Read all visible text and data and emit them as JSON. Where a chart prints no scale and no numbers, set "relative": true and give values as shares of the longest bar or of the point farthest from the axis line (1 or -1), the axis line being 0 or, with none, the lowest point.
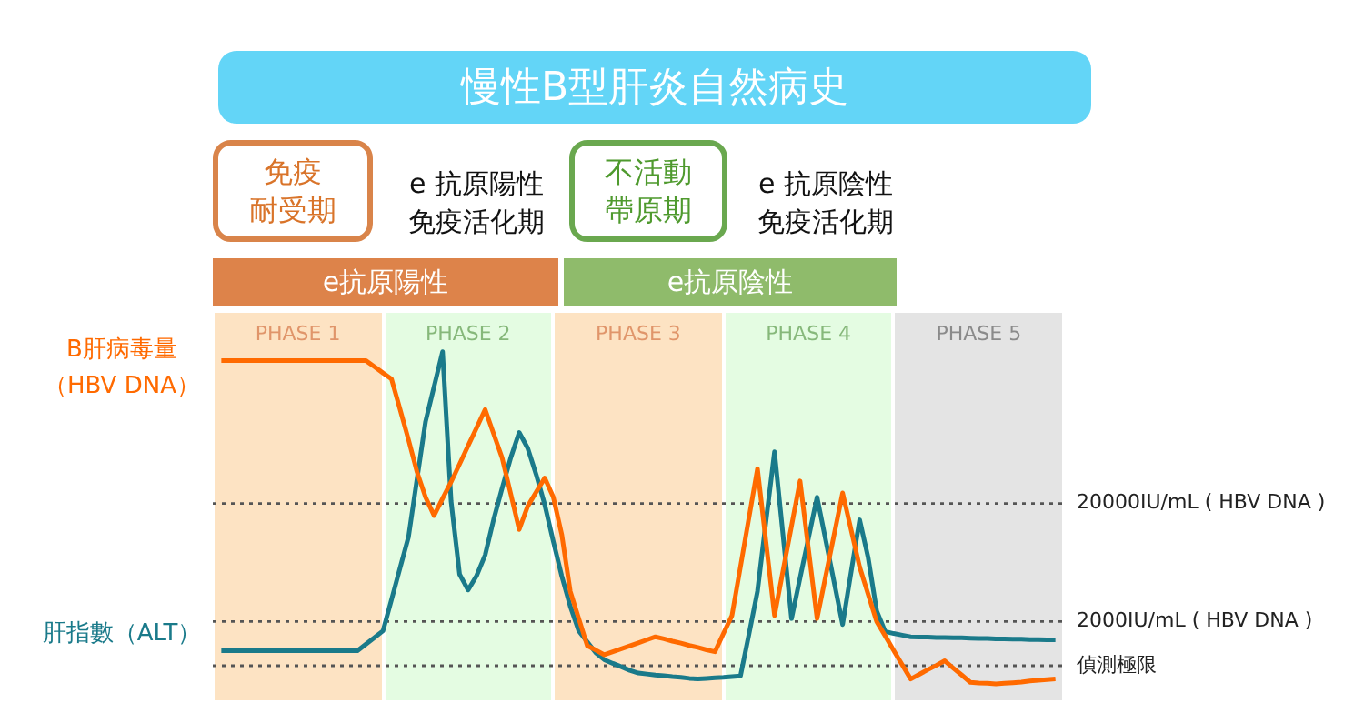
{
  "chart_data": {
    "type": "line",
    "title": "慢性B型肝炎自然病史",
    "relative": true,
    "tick_labels": false,
    "legend": false,
    "marker": "none",
    "line_style": "solid",
    "categories": [
      null,
      null,
      null,
      null,
      null,
      null,
      null,
      null,
      null,
      null,
      null,
      null,
      null,
      null,
      null,
      null,
      null,
      null,
      null,
      null,
      null,
      null,
      null,
      null,
      null,
      null,
      null,
      null,
      null,
      null,
      null,
      null,
      null,
      null,
      null,
      null,
      null,
      null,
      null,
      null,
      null,
      null,
      null,
      null,
      null,
      null,
      null,
      null,
      null,
      null,
      null,
      null,
      null,
      null,
      null,
      null,
      null,
      null,
      null,
      null,
      null,
      null,
      null,
      null,
      null,
      null,
      null,
      null,
      null,
      null,
      null,
      null,
      null,
      null,
      null,
      null,
      null,
      null,
      null,
      null,
      null,
      null,
      null,
      null,
      null,
      null,
      null,
      null,
      null,
      null,
      null,
      null,
      null,
      null,
      null,
      null,
      null,
      null,
      null,
      null,
      null
    ],
    "series": [
      {
        "name": "B肝病毒量（HBV DNA）",
        "color": "#ff6a00",
        "values": [
          null,
          0.973,
          0.973,
          0.973,
          0.973,
          0.973,
          0.973,
          0.973,
          0.973,
          0.973,
          0.973,
          0.973,
          0.973,
          0.973,
          0.973,
          0.973,
          0.973,
          0.973,
          0.973,
          0.955,
          0.936,
          0.918,
          0.827,
          0.735,
          0.638,
          0.562,
          0.507,
          0.558,
          0.608,
          0.662,
          0.717,
          0.771,
          0.826,
          0.753,
          0.68,
          0.573,
          0.465,
          0.535,
          0.578,
          0.62,
          0.563,
          0.45,
          0.279,
          0.197,
          0.115,
          0.102,
          0.088,
          0.097,
          0.106,
          0.115,
          0.124,
          0.133,
          0.142,
          0.136,
          0.129,
          0.123,
          0.116,
          0.11,
          0.103,
          0.097,
          0.152,
          0.206,
          0.353,
          0.501,
          0.648,
          0.427,
          0.206,
          0.341,
          0.476,
          0.611,
          0.404,
          0.197,
          0.323,
          0.449,
          0.575,
          0.464,
          0.352,
          0.27,
          0.188,
          0.145,
          0.101,
          0.058,
          0.015,
          0.029,
          0.043,
          0.056,
          0.07,
          0.048,
          0.027,
          0.005,
          0.003,
          0.002,
          0,
          0.002,
          0.004,
          0.006,
          0.009,
          0.011,
          0.013,
          0.015,
          null
        ]
      },
      {
        "name": "肝指數（ALT）",
        "color": "#1a7a8a",
        "values": [
          null,
          0.1,
          0.1,
          0.1,
          0.1,
          0.1,
          0.1,
          0.1,
          0.1,
          0.1,
          0.1,
          0.1,
          0.1,
          0.1,
          0.1,
          0.1,
          0.1,
          0.1,
          0.12,
          0.14,
          0.16,
          0.254,
          0.349,
          0.443,
          0.617,
          0.79,
          0.895,
          1,
          0.55,
          0.33,
          0.283,
          0.326,
          0.388,
          0.495,
          0.59,
          0.68,
          0.757,
          0.71,
          0.63,
          0.54,
          0.43,
          0.325,
          0.234,
          0.16,
          0.127,
          0.094,
          0.073,
          0.062,
          0.052,
          0.041,
          0.033,
          0.03,
          0.027,
          0.025,
          0.022,
          0.02,
          0.017,
          0.015,
          0.017,
          0.019,
          0.02,
          0.022,
          0.024,
          0.15,
          0.279,
          0.49,
          0.699,
          0.448,
          0.197,
          0.319,
          0.44,
          0.562,
          0.435,
          0.307,
          0.179,
          0.337,
          0.494,
          0.38,
          0.22,
          0.158,
          0.152,
          0.147,
          0.142,
          0.141,
          0.141,
          0.14,
          0.14,
          0.139,
          0.139,
          0.138,
          0.137,
          0.137,
          0.136,
          0.136,
          0.135,
          0.135,
          0.134,
          0.134,
          0.133,
          0.133,
          null
        ]
      },
      {
        "name": "20000IU/mL ( HBV DNA )",
        "color": "#555555",
        "line_style": "dotted",
        "values": [
          0.543,
          0.543,
          0.543,
          0.543,
          0.543,
          0.543,
          0.543,
          0.543,
          0.543,
          0.543,
          0.543,
          0.543,
          0.543,
          0.543,
          0.543,
          0.543,
          0.543,
          0.543,
          0.543,
          0.543,
          0.543,
          0.543,
          0.543,
          0.543,
          0.543,
          0.543,
          0.543,
          0.543,
          0.543,
          0.543,
          0.543,
          0.543,
          0.543,
          0.543,
          0.543,
          0.543,
          0.543,
          0.543,
          0.543,
          0.543,
          0.543,
          0.543,
          0.543,
          0.543,
          0.543,
          0.543,
          0.543,
          0.543,
          0.543,
          0.543,
          0.543,
          0.543,
          0.543,
          0.543,
          0.543,
          0.543,
          0.543,
          0.543,
          0.543,
          0.543,
          0.543,
          0.543,
          0.543,
          0.543,
          0.543,
          0.543,
          0.543,
          0.543,
          0.543,
          0.543,
          0.543,
          0.543,
          0.543,
          0.543,
          0.543,
          0.543,
          0.543,
          0.543,
          0.543,
          0.543,
          0.543,
          0.543,
          0.543,
          0.543,
          0.543,
          0.543,
          0.543,
          0.543,
          0.543,
          0.543,
          0.543,
          0.543,
          0.543,
          0.543,
          0.543,
          0.543,
          0.543,
          0.543,
          0.543,
          0.543,
          0.543
        ]
      },
      {
        "name": "2000IU/mL ( HBV DNA )",
        "color": "#555555",
        "line_style": "dotted",
        "values": [
          0.188,
          0.188,
          0.188,
          0.188,
          0.188,
          0.188,
          0.188,
          0.188,
          0.188,
          0.188,
          0.188,
          0.188,
          0.188,
          0.188,
          0.188,
          0.188,
          0.188,
          0.188,
          0.188,
          0.188,
          0.188,
          0.188,
          0.188,
          0.188,
          0.188,
          0.188,
          0.188,
          0.188,
          0.188,
          0.188,
          0.188,
          0.188,
          0.188,
          0.188,
          0.188,
          0.188,
          0.188,
          0.188,
          0.188,
          0.188,
          0.188,
          0.188,
          0.188,
          0.188,
          0.188,
          0.188,
          0.188,
          0.188,
          0.188,
          0.188,
          0.188,
          0.188,
          0.188,
          0.188,
          0.188,
          0.188,
          0.188,
          0.188,
          0.188,
          0.188,
          0.188,
          0.188,
          0.188,
          0.188,
          0.188,
          0.188,
          0.188,
          0.188,
          0.188,
          0.188,
          0.188,
          0.188,
          0.188,
          0.188,
          0.188,
          0.188,
          0.188,
          0.188,
          0.188,
          0.188,
          0.188,
          0.188,
          0.188,
          0.188,
          0.188,
          0.188,
          0.188,
          0.188,
          0.188,
          0.188,
          0.188,
          0.188,
          0.188,
          0.188,
          0.188,
          0.188,
          0.188,
          0.188,
          0.188,
          0.188,
          0.188
        ]
      },
      {
        "name": "偵測極限",
        "color": "#555555",
        "line_style": "dotted",
        "values": [
          0.055,
          0.055,
          0.055,
          0.055,
          0.055,
          0.055,
          0.055,
          0.055,
          0.055,
          0.055,
          0.055,
          0.055,
          0.055,
          0.055,
          0.055,
          0.055,
          0.055,
          0.055,
          0.055,
          0.055,
          0.055,
          0.055,
          0.055,
          0.055,
          0.055,
          0.055,
          0.055,
          0.055,
          0.055,
          0.055,
          0.055,
          0.055,
          0.055,
          0.055,
          0.055,
          0.055,
          0.055,
          0.055,
          0.055,
          0.055,
          0.055,
          0.055,
          0.055,
          0.055,
          0.055,
          0.055,
          0.055,
          0.055,
          0.055,
          0.055,
          0.055,
          0.055,
          0.055,
          0.055,
          0.055,
          0.055,
          0.055,
          0.055,
          0.055,
          0.055,
          0.055,
          0.055,
          0.055,
          0.055,
          0.055,
          0.055,
          0.055,
          0.055,
          0.055,
          0.055,
          0.055,
          0.055,
          0.055,
          0.055,
          0.055,
          0.055,
          0.055,
          0.055,
          0.055,
          0.055,
          0.055,
          0.055,
          0.055,
          0.055,
          0.055,
          0.055,
          0.055,
          0.055,
          0.055,
          0.055,
          0.055,
          0.055,
          0.055,
          0.055,
          0.055,
          0.055,
          0.055,
          0.055,
          0.055,
          0.055,
          0.055
        ]
      }
    ],
    "annotations": [
      "免疫耐受期",
      "e 抗原陽性免疫活化期",
      "不活動帶原期",
      "e 抗原陰性免疫活化期",
      "e抗原陽性",
      "e抗原陰性",
      "PHASE 1",
      "PHASE 2",
      "PHASE 3",
      "PHASE 4",
      "PHASE 5"
    ]
  }
}
